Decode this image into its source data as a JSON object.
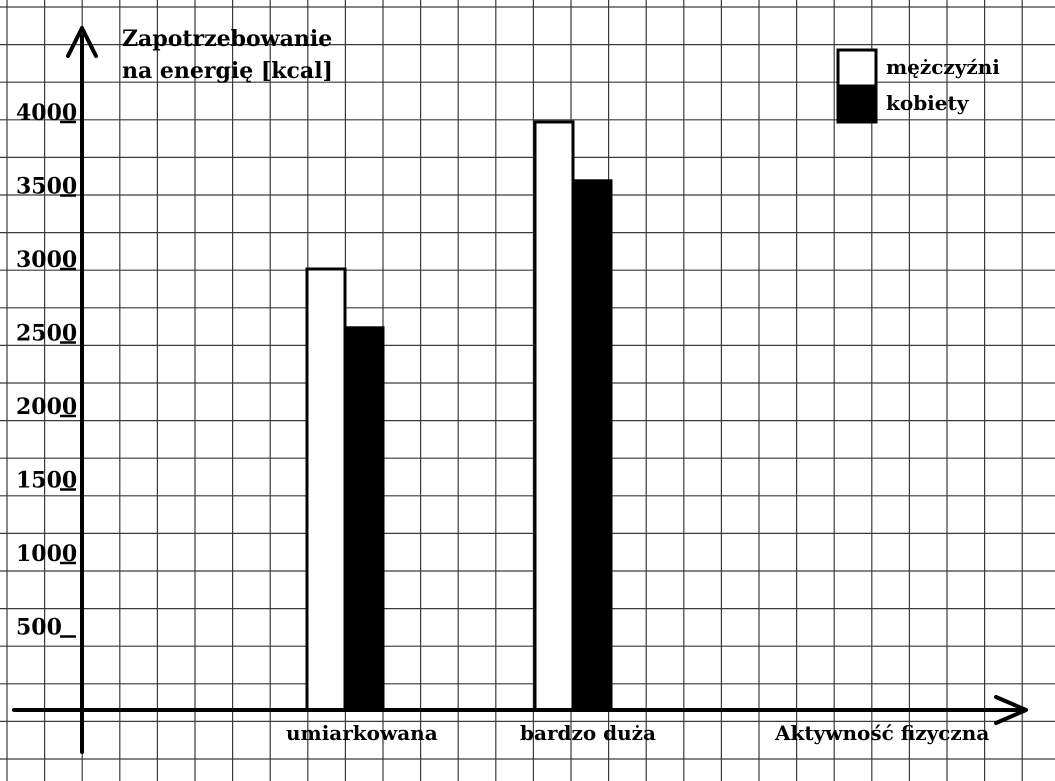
{
  "chart_data": {
    "type": "bar",
    "title": "",
    "ylabel": "Zapotrzebowanie na energię [kcal]",
    "ylabel_lines": [
      "Zapotrzebowanie",
      "na energię [kcal]"
    ],
    "xlabel": "Aktywność fizyczna",
    "categories": [
      "umiarkowana",
      "bardzo duża"
    ],
    "series": [
      {
        "name": "mężczyźni",
        "values": [
          3000,
          4000
        ],
        "fill": "#ffffff",
        "stroke": "#000000"
      },
      {
        "name": "kobiety",
        "values": [
          2600,
          3600
        ],
        "fill": "#000000",
        "stroke": "#000000"
      }
    ],
    "yticks": [
      "500",
      "1000",
      "1500",
      "2000",
      "2500",
      "3000",
      "3500",
      "4000"
    ],
    "ytick_values": [
      500,
      1000,
      1500,
      2000,
      2500,
      3000,
      3500,
      4000
    ],
    "ylim": [
      0,
      4000
    ],
    "grid": true,
    "legend_position": "top-right"
  }
}
